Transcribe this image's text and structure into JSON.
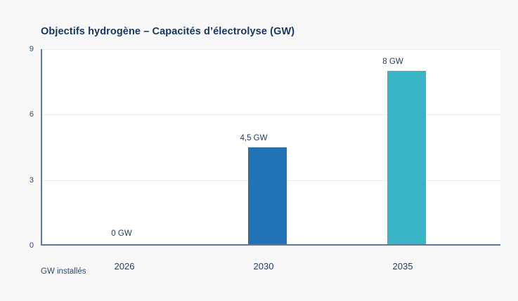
{
  "page": {
    "background": "#f8f8f8",
    "plot_background": "#ffffff"
  },
  "colors": {
    "axis": "#5b7a9d",
    "gridline": "#e6edf5",
    "title_text": "#17365f",
    "tick_text": "#2d4a6e",
    "value_label_text": "#1f3a60",
    "bar_blue": "#2273b5",
    "bar_teal": "#3ab5c5"
  },
  "chart_data": {
    "type": "bar",
    "title": "Objectifs hydrogène – Capacités d’électrolyse (GW)",
    "categories": [
      "2026",
      "2030",
      "2035"
    ],
    "values": [
      0,
      4.5,
      8
    ],
    "value_labels": [
      "0 GW",
      "4,5 GW",
      "8 GW"
    ],
    "bar_colors": [
      "#2273b5",
      "#2273b5",
      "#3ab5c5"
    ],
    "ylim": [
      0,
      9
    ],
    "yticks": [
      0,
      3,
      6,
      9
    ],
    "xlabel": "",
    "ylabel": "",
    "grid": "horizontal",
    "legend": "none",
    "footnote": "GW installés"
  }
}
